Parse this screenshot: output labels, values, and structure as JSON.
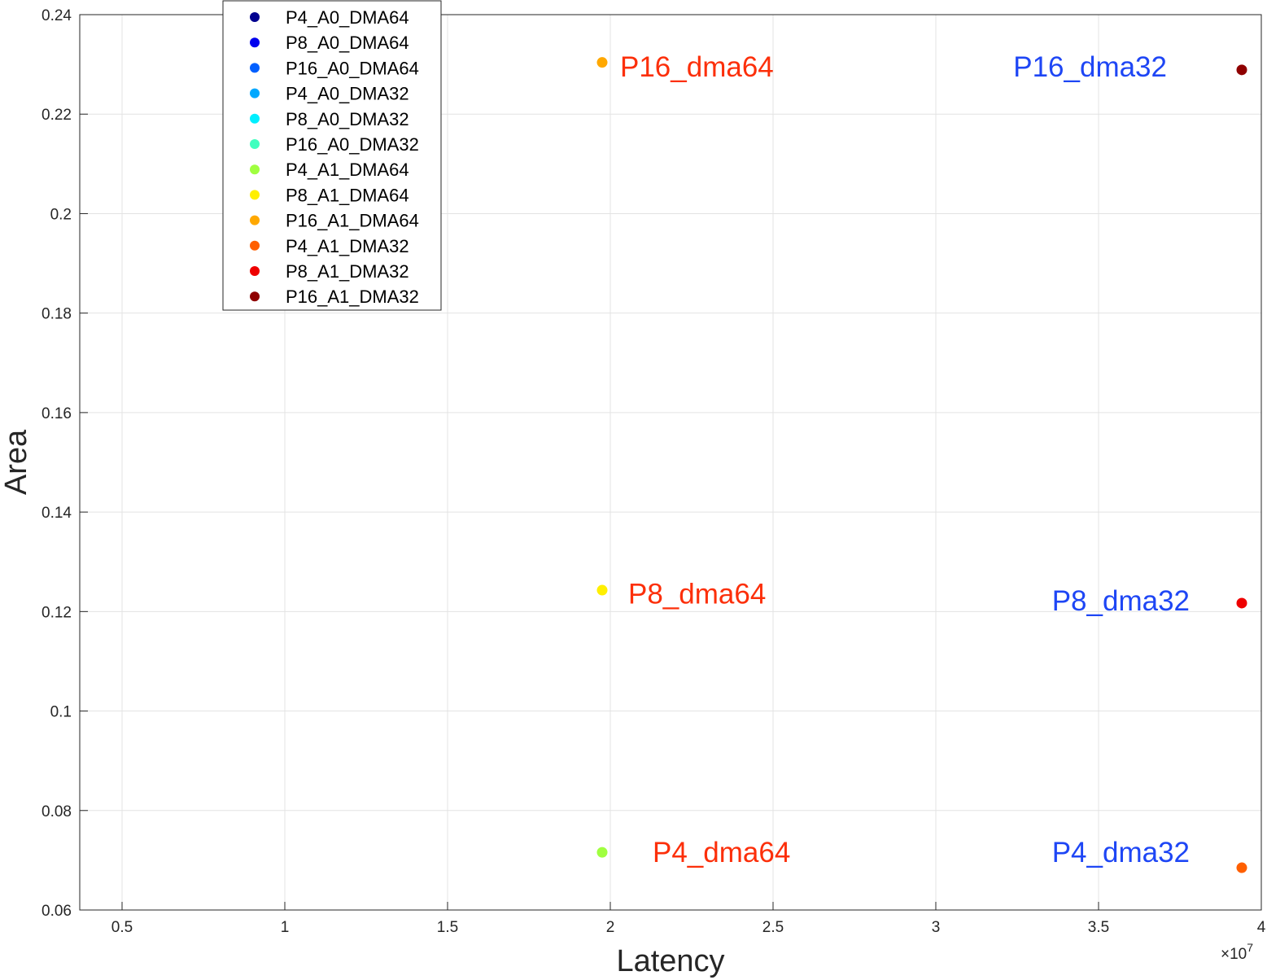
{
  "chart_data": {
    "type": "scatter",
    "title": "",
    "xlabel": "Latency",
    "ylabel": "Area",
    "x_exponent_label": "×10",
    "x_exponent_power": "7",
    "xlim": [
      0.37,
      4.0
    ],
    "ylim": [
      0.06,
      0.24
    ],
    "x_ticks": [
      0.5,
      1,
      1.5,
      2,
      2.5,
      3,
      3.5,
      4
    ],
    "x_tick_labels": [
      "0.5",
      "1",
      "1.5",
      "2",
      "2.5",
      "3",
      "3.5",
      "4"
    ],
    "y_ticks": [
      0.06,
      0.08,
      0.1,
      0.12,
      0.14,
      0.16,
      0.18,
      0.2,
      0.22,
      0.24
    ],
    "y_tick_labels": [
      "0.06",
      "0.08",
      "0.1",
      "0.12",
      "0.14",
      "0.16",
      "0.18",
      "0.2",
      "0.22",
      "0.24"
    ],
    "grid": true,
    "legend_position": "top-left",
    "series": [
      {
        "name": "P4_A0_DMA64",
        "color": "#00008f",
        "points": []
      },
      {
        "name": "P8_A0_DMA64",
        "color": "#0000ee",
        "points": []
      },
      {
        "name": "P16_A0_DMA64",
        "color": "#005fff",
        "points": []
      },
      {
        "name": "P4_A0_DMA32",
        "color": "#00a8ff",
        "points": []
      },
      {
        "name": "P8_A0_DMA32",
        "color": "#00efff",
        "points": []
      },
      {
        "name": "P16_A0_DMA32",
        "color": "#40ffbf",
        "points": []
      },
      {
        "name": "P4_A1_DMA64",
        "color": "#a0ff40",
        "points": [
          [
            1.975,
            0.0716
          ]
        ]
      },
      {
        "name": "P8_A1_DMA64",
        "color": "#ffef00",
        "points": [
          [
            1.975,
            0.1243
          ]
        ]
      },
      {
        "name": "P16_A1_DMA64",
        "color": "#ffa800",
        "points": [
          [
            1.975,
            0.2304
          ]
        ]
      },
      {
        "name": "P4_A1_DMA32",
        "color": "#ff5f00",
        "points": [
          [
            3.94,
            0.0685
          ]
        ]
      },
      {
        "name": "P8_A1_DMA32",
        "color": "#ee0000",
        "points": [
          [
            3.94,
            0.1217
          ]
        ]
      },
      {
        "name": "P16_A1_DMA32",
        "color": "#8f0000",
        "points": [
          [
            3.94,
            0.2289
          ]
        ]
      }
    ],
    "annotations": [
      {
        "text": "P16_dma64",
        "x": 2.03,
        "y": 0.2295,
        "color": "#fc2f0a",
        "anchor": "start"
      },
      {
        "text": "P8_dma64",
        "x": 2.055,
        "y": 0.1236,
        "color": "#fc2f0a",
        "anchor": "start"
      },
      {
        "text": "P4_dma64",
        "x": 2.13,
        "y": 0.0716,
        "color": "#fc2f0a",
        "anchor": "start"
      },
      {
        "text": "P16_dma32",
        "x": 3.71,
        "y": 0.2295,
        "color": "#1e46f5",
        "anchor": "end"
      },
      {
        "text": "P8_dma32",
        "x": 3.78,
        "y": 0.1222,
        "color": "#1e46f5",
        "anchor": "end"
      },
      {
        "text": "P4_dma32",
        "x": 3.78,
        "y": 0.0716,
        "color": "#1e46f5",
        "anchor": "end"
      }
    ]
  }
}
